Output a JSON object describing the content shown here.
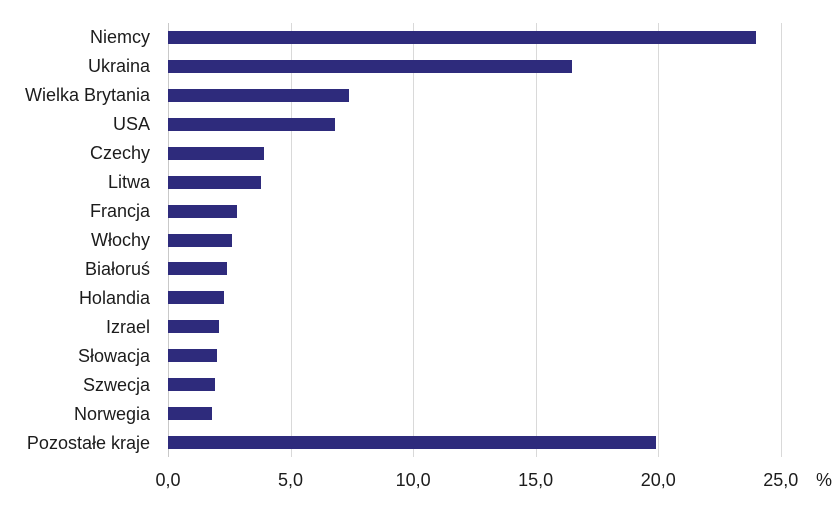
{
  "chart_data": {
    "type": "bar",
    "orientation": "horizontal",
    "title": "",
    "categories": [
      "Niemcy",
      "Ukraina",
      "Wielka Brytania",
      "USA",
      "Czechy",
      "Litwa",
      "Francja",
      "Włochy",
      "Białoruś",
      "Holandia",
      "Izrael",
      "Słowacja",
      "Szwecja",
      "Norwegia",
      "Pozostałe kraje"
    ],
    "values": [
      24.0,
      16.5,
      7.4,
      6.8,
      3.9,
      3.8,
      2.8,
      2.6,
      2.4,
      2.3,
      2.1,
      2.0,
      1.9,
      1.8,
      19.9
    ],
    "xlabel": "",
    "ylabel": "",
    "unit_label": "%",
    "x_tick_values": [
      0,
      5,
      10,
      15,
      20,
      25
    ],
    "x_tick_labels": [
      "0,0",
      "5,0",
      "10,0",
      "15,0",
      "20,0",
      "25,0"
    ],
    "xlim": [
      0,
      26.6
    ],
    "grid": "vertical-only",
    "legend": "none"
  },
  "colors": {
    "bar": "#2e2b7c",
    "gridline": "#d9d9d9",
    "zero_line": "#c9c9c9",
    "text": "#1c1c1c",
    "background": "#ffffff"
  }
}
